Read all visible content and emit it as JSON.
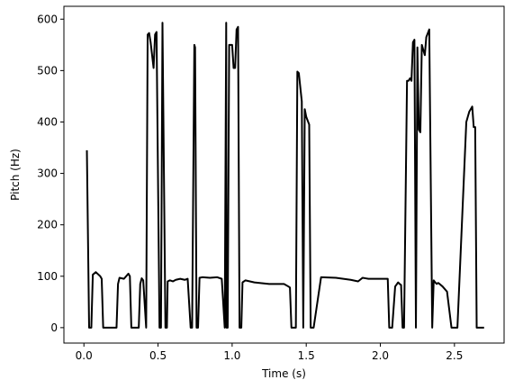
{
  "chart_data": {
    "type": "line",
    "xlabel": "Time (s)",
    "ylabel": "Pitch (Hz)",
    "xlim": [
      -0.135,
      2.835
    ],
    "ylim": [
      -30,
      625
    ],
    "xticks": [
      0.0,
      0.5,
      1.0,
      1.5,
      2.0,
      2.5
    ],
    "xtick_labels": [
      "0.0",
      "0.5",
      "1.0",
      "1.5",
      "2.0",
      "2.5"
    ],
    "yticks": [
      0,
      100,
      200,
      300,
      400,
      500,
      600
    ],
    "ytick_labels": [
      "0",
      "100",
      "200",
      "300",
      "400",
      "500",
      "600"
    ],
    "grid": false,
    "line_color": "#000000",
    "series": [
      {
        "x": [
          0.02,
          0.035,
          0.05,
          0.06,
          0.08,
          0.11,
          0.12,
          0.13,
          0.2,
          0.22,
          0.23,
          0.24,
          0.27,
          0.3,
          0.31,
          0.32,
          0.37,
          0.38,
          0.39,
          0.4,
          0.42,
          0.43,
          0.44,
          0.45,
          0.47,
          0.48,
          0.49,
          0.51,
          0.52,
          0.53,
          0.55,
          0.552,
          0.56,
          0.565,
          0.58,
          0.6,
          0.62,
          0.65,
          0.68,
          0.7,
          0.72,
          0.73,
          0.745,
          0.75,
          0.76,
          0.77,
          0.78,
          0.8,
          0.85,
          0.9,
          0.93,
          0.95,
          0.96,
          0.962,
          0.97,
          0.98,
          1.0,
          1.01,
          1.02,
          1.03,
          1.04,
          1.05,
          1.06,
          1.062,
          1.07,
          1.09,
          1.15,
          1.25,
          1.35,
          1.38,
          1.39,
          1.4,
          1.43,
          1.44,
          1.45,
          1.47,
          1.48,
          1.49,
          1.5,
          1.52,
          1.53,
          1.54,
          1.55,
          1.6,
          1.7,
          1.75,
          1.8,
          1.85,
          1.88,
          1.9,
          1.92,
          2.05,
          2.06,
          2.07,
          2.08,
          2.1,
          2.12,
          2.13,
          2.14,
          2.15,
          2.16,
          2.18,
          2.19,
          2.2,
          2.21,
          2.22,
          2.23,
          2.24,
          2.25,
          2.26,
          2.27,
          2.28,
          2.3,
          2.31,
          2.33,
          2.35,
          2.36,
          2.37,
          2.38,
          2.39,
          2.4,
          2.42,
          2.45,
          2.48,
          2.5,
          2.51,
          2.52,
          2.58,
          2.59,
          2.6,
          2.62,
          2.63,
          2.64,
          2.65,
          2.67,
          2.68,
          2.7
        ],
        "y": [
          345,
          0,
          0,
          103,
          108,
          100,
          95,
          0,
          0,
          0,
          85,
          97,
          95,
          105,
          100,
          0,
          0,
          85,
          96,
          92,
          0,
          570,
          573,
          555,
          505,
          570,
          575,
          0,
          0,
          593,
          0,
          0,
          0,
          90,
          92,
          90,
          93,
          95,
          93,
          95,
          0,
          0,
          550,
          545,
          0,
          0,
          97,
          98,
          97,
          98,
          95,
          0,
          593,
          0,
          0,
          550,
          550,
          505,
          505,
          580,
          585,
          0,
          0,
          0,
          88,
          92,
          88,
          85,
          85,
          80,
          78,
          0,
          0,
          498,
          495,
          440,
          0,
          425,
          410,
          395,
          0,
          0,
          0,
          98,
          97,
          95,
          93,
          90,
          97,
          96,
          95,
          95,
          0,
          0,
          0,
          80,
          88,
          85,
          83,
          0,
          0,
          480,
          480,
          485,
          480,
          555,
          560,
          0,
          545,
          385,
          380,
          550,
          530,
          565,
          580,
          0,
          92,
          88,
          85,
          87,
          85,
          80,
          70,
          0,
          0,
          0,
          0,
          400,
          410,
          420,
          430,
          390,
          390,
          0,
          0,
          0,
          0
        ]
      }
    ]
  }
}
